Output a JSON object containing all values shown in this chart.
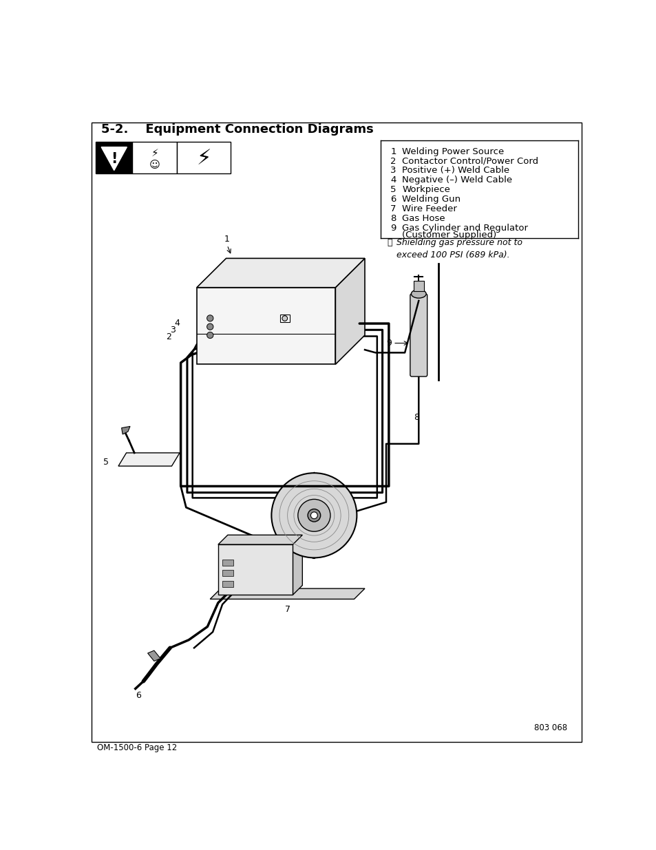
{
  "title": "5-2.    Equipment Connection Diagrams",
  "title_fontsize": 13,
  "bg_color": "#ffffff",
  "legend_items": [
    [
      "1",
      "Welding Power Source"
    ],
    [
      "2",
      "Contactor Control/Power Cord"
    ],
    [
      "3",
      "Positive (+) Weld Cable"
    ],
    [
      "4",
      "Negative (–) Weld Cable"
    ],
    [
      "5",
      "Workpiece"
    ],
    [
      "6",
      "Welding Gun"
    ],
    [
      "7",
      "Wire Feeder"
    ],
    [
      "8",
      "Gas Hose"
    ],
    [
      "9",
      "Gas Cylinder and Regulator\n(Customer Supplied)"
    ]
  ],
  "note_text": "Shielding gas pressure not to\nexceed 100 PSI (689 kPa).",
  "footer_text": "OM-1500-6 Page 12",
  "figure_number": "803 068"
}
